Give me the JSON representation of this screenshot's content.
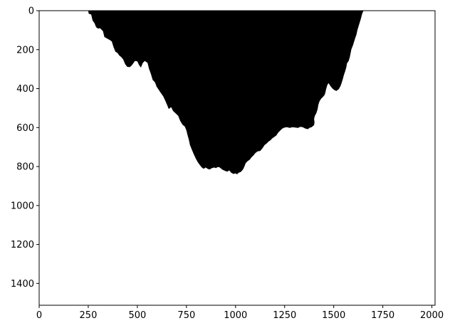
{
  "chart_data": {
    "type": "heatmap",
    "title": "",
    "xlabel": "",
    "ylabel": "",
    "xlim": [
      0,
      2016
    ],
    "ylim": [
      1512,
      0
    ],
    "x_ticks": [
      0,
      250,
      500,
      750,
      1000,
      1250,
      1500,
      1750,
      2000
    ],
    "y_ticks": [
      0,
      200,
      400,
      600,
      800,
      1000,
      1200,
      1400
    ],
    "grid": false,
    "fill_color": "#000000",
    "background_color": "#ffffff",
    "region": {
      "name": "",
      "boundary": [
        [
          250,
          0
        ],
        [
          252,
          15
        ],
        [
          265,
          20
        ],
        [
          272,
          50
        ],
        [
          282,
          65
        ],
        [
          290,
          85
        ],
        [
          300,
          92
        ],
        [
          310,
          90
        ],
        [
          325,
          105
        ],
        [
          332,
          135
        ],
        [
          350,
          145
        ],
        [
          362,
          152
        ],
        [
          370,
          158
        ],
        [
          378,
          185
        ],
        [
          388,
          210
        ],
        [
          400,
          218
        ],
        [
          408,
          230
        ],
        [
          418,
          238
        ],
        [
          428,
          250
        ],
        [
          438,
          275
        ],
        [
          448,
          288
        ],
        [
          462,
          290
        ],
        [
          472,
          280
        ],
        [
          478,
          272
        ],
        [
          488,
          258
        ],
        [
          500,
          260
        ],
        [
          508,
          278
        ],
        [
          518,
          292
        ],
        [
          528,
          268
        ],
        [
          538,
          258
        ],
        [
          552,
          268
        ],
        [
          560,
          300
        ],
        [
          568,
          322
        ],
        [
          578,
          355
        ],
        [
          590,
          368
        ],
        [
          598,
          390
        ],
        [
          608,
          405
        ],
        [
          618,
          420
        ],
        [
          632,
          440
        ],
        [
          642,
          462
        ],
        [
          652,
          485
        ],
        [
          660,
          505
        ],
        [
          672,
          495
        ],
        [
          682,
          515
        ],
        [
          696,
          528
        ],
        [
          708,
          540
        ],
        [
          718,
          565
        ],
        [
          730,
          585
        ],
        [
          742,
          595
        ],
        [
          750,
          615
        ],
        [
          756,
          640
        ],
        [
          762,
          662
        ],
        [
          768,
          690
        ],
        [
          778,
          715
        ],
        [
          788,
          738
        ],
        [
          798,
          760
        ],
        [
          808,
          778
        ],
        [
          818,
          792
        ],
        [
          828,
          805
        ],
        [
          838,
          812
        ],
        [
          848,
          805
        ],
        [
          858,
          812
        ],
        [
          868,
          815
        ],
        [
          880,
          808
        ],
        [
          892,
          805
        ],
        [
          900,
          808
        ],
        [
          910,
          802
        ],
        [
          920,
          805
        ],
        [
          932,
          815
        ],
        [
          946,
          822
        ],
        [
          958,
          826
        ],
        [
          968,
          820
        ],
        [
          978,
          832
        ],
        [
          990,
          838
        ],
        [
          1000,
          835
        ],
        [
          1008,
          840
        ],
        [
          1016,
          832
        ],
        [
          1026,
          828
        ],
        [
          1034,
          820
        ],
        [
          1040,
          812
        ],
        [
          1046,
          798
        ],
        [
          1052,
          782
        ],
        [
          1062,
          772
        ],
        [
          1072,
          765
        ],
        [
          1082,
          752
        ],
        [
          1092,
          742
        ],
        [
          1100,
          732
        ],
        [
          1112,
          722
        ],
        [
          1126,
          720
        ],
        [
          1138,
          705
        ],
        [
          1148,
          690
        ],
        [
          1158,
          682
        ],
        [
          1168,
          672
        ],
        [
          1178,
          665
        ],
        [
          1188,
          655
        ],
        [
          1198,
          648
        ],
        [
          1208,
          640
        ],
        [
          1218,
          625
        ],
        [
          1228,
          615
        ],
        [
          1238,
          605
        ],
        [
          1250,
          600
        ],
        [
          1262,
          598
        ],
        [
          1276,
          602
        ],
        [
          1290,
          598
        ],
        [
          1304,
          600
        ],
        [
          1318,
          602
        ],
        [
          1330,
          596
        ],
        [
          1342,
          598
        ],
        [
          1356,
          605
        ],
        [
          1368,
          608
        ],
        [
          1380,
          600
        ],
        [
          1388,
          598
        ],
        [
          1394,
          592
        ],
        [
          1400,
          588
        ],
        [
          1402,
          572
        ],
        [
          1400,
          556
        ],
        [
          1404,
          540
        ],
        [
          1412,
          525
        ],
        [
          1418,
          505
        ],
        [
          1422,
          482
        ],
        [
          1428,
          465
        ],
        [
          1436,
          452
        ],
        [
          1446,
          442
        ],
        [
          1454,
          432
        ],
        [
          1458,
          418
        ],
        [
          1462,
          400
        ],
        [
          1468,
          380
        ],
        [
          1474,
          372
        ],
        [
          1484,
          388
        ],
        [
          1494,
          400
        ],
        [
          1504,
          408
        ],
        [
          1514,
          412
        ],
        [
          1526,
          402
        ],
        [
          1534,
          388
        ],
        [
          1540,
          372
        ],
        [
          1546,
          352
        ],
        [
          1552,
          330
        ],
        [
          1558,
          312
        ],
        [
          1564,
          292
        ],
        [
          1568,
          270
        ],
        [
          1576,
          258
        ],
        [
          1582,
          238
        ],
        [
          1586,
          218
        ],
        [
          1590,
          198
        ],
        [
          1598,
          178
        ],
        [
          1604,
          158
        ],
        [
          1610,
          140
        ],
        [
          1616,
          122
        ],
        [
          1620,
          102
        ],
        [
          1626,
          82
        ],
        [
          1632,
          62
        ],
        [
          1638,
          42
        ],
        [
          1642,
          26
        ],
        [
          1646,
          12
        ],
        [
          1652,
          0
        ]
      ]
    }
  }
}
